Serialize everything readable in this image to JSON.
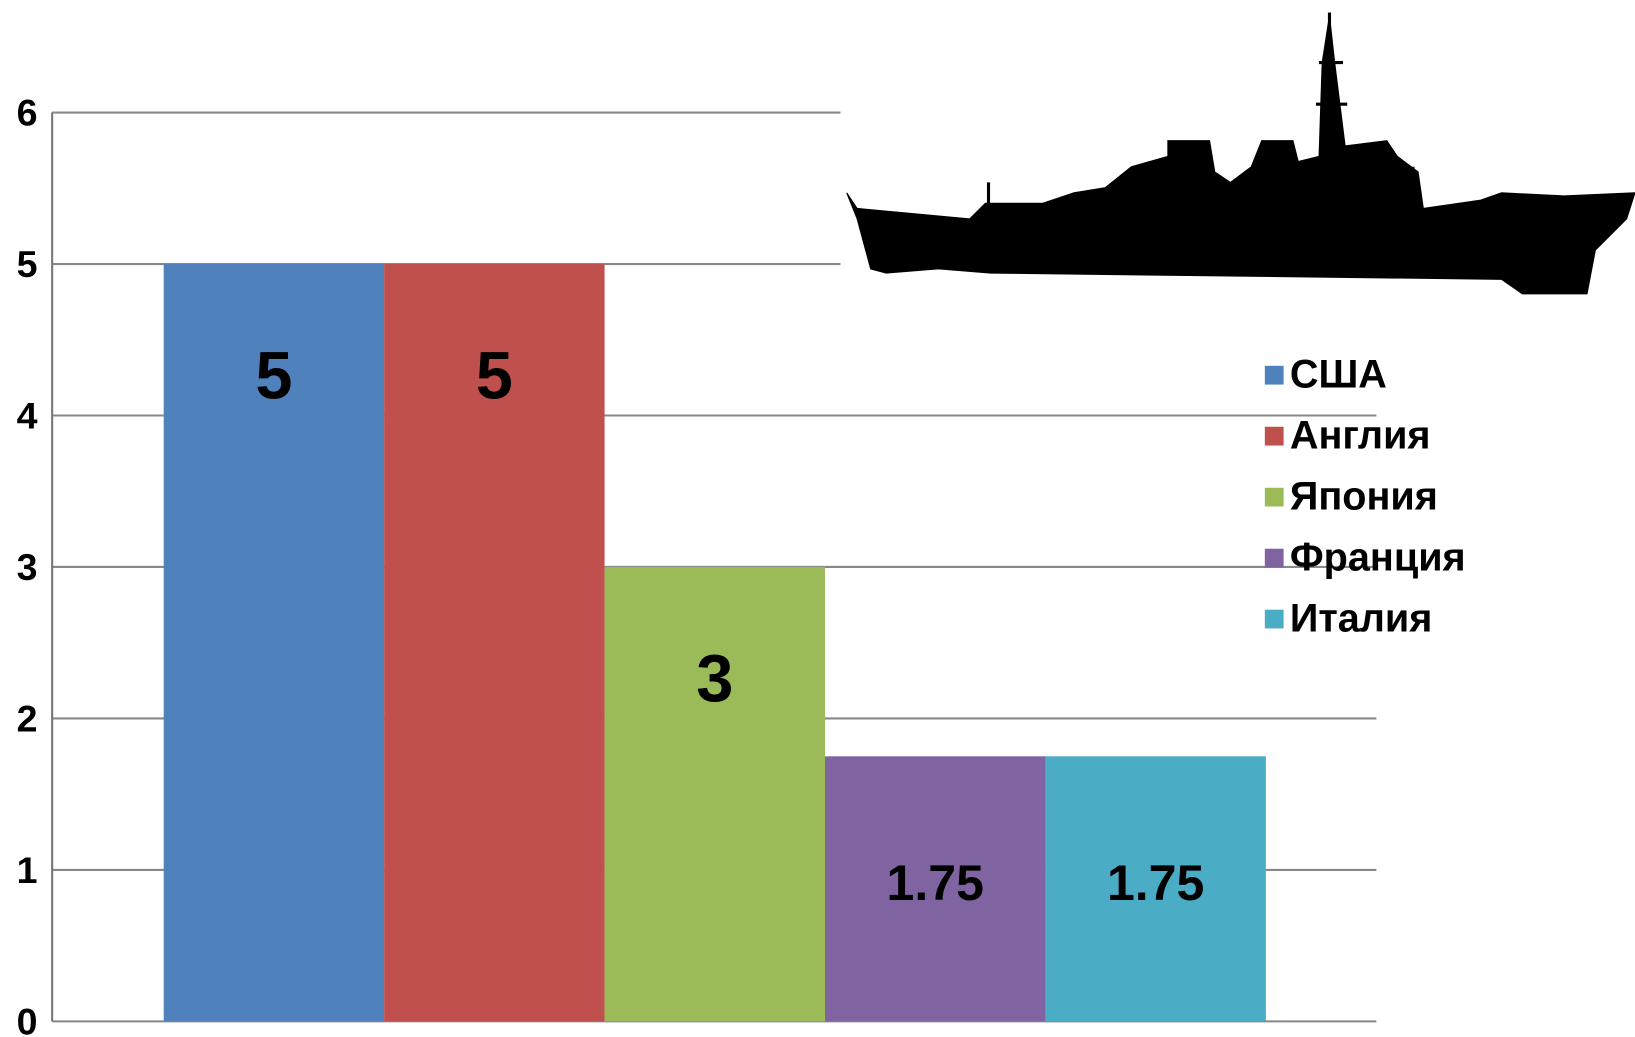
{
  "chart_data": {
    "type": "bar",
    "ylim": [
      0,
      6
    ],
    "yticks": [
      0,
      1,
      2,
      3,
      4,
      5,
      6
    ],
    "grid": true,
    "legend": "right",
    "series": [
      {
        "name": "США",
        "color": "#4f81bd",
        "values": [
          5
        ]
      },
      {
        "name": "Англия",
        "color": "#c0504d",
        "values": [
          5
        ]
      },
      {
        "name": "Япония",
        "color": "#9bbb59",
        "values": [
          3
        ]
      },
      {
        "name": "Франция",
        "color": "#8064a2",
        "values": [
          1.75
        ]
      },
      {
        "name": "Италия",
        "color": "#4bacc6",
        "values": [
          1.75
        ]
      }
    ]
  }
}
